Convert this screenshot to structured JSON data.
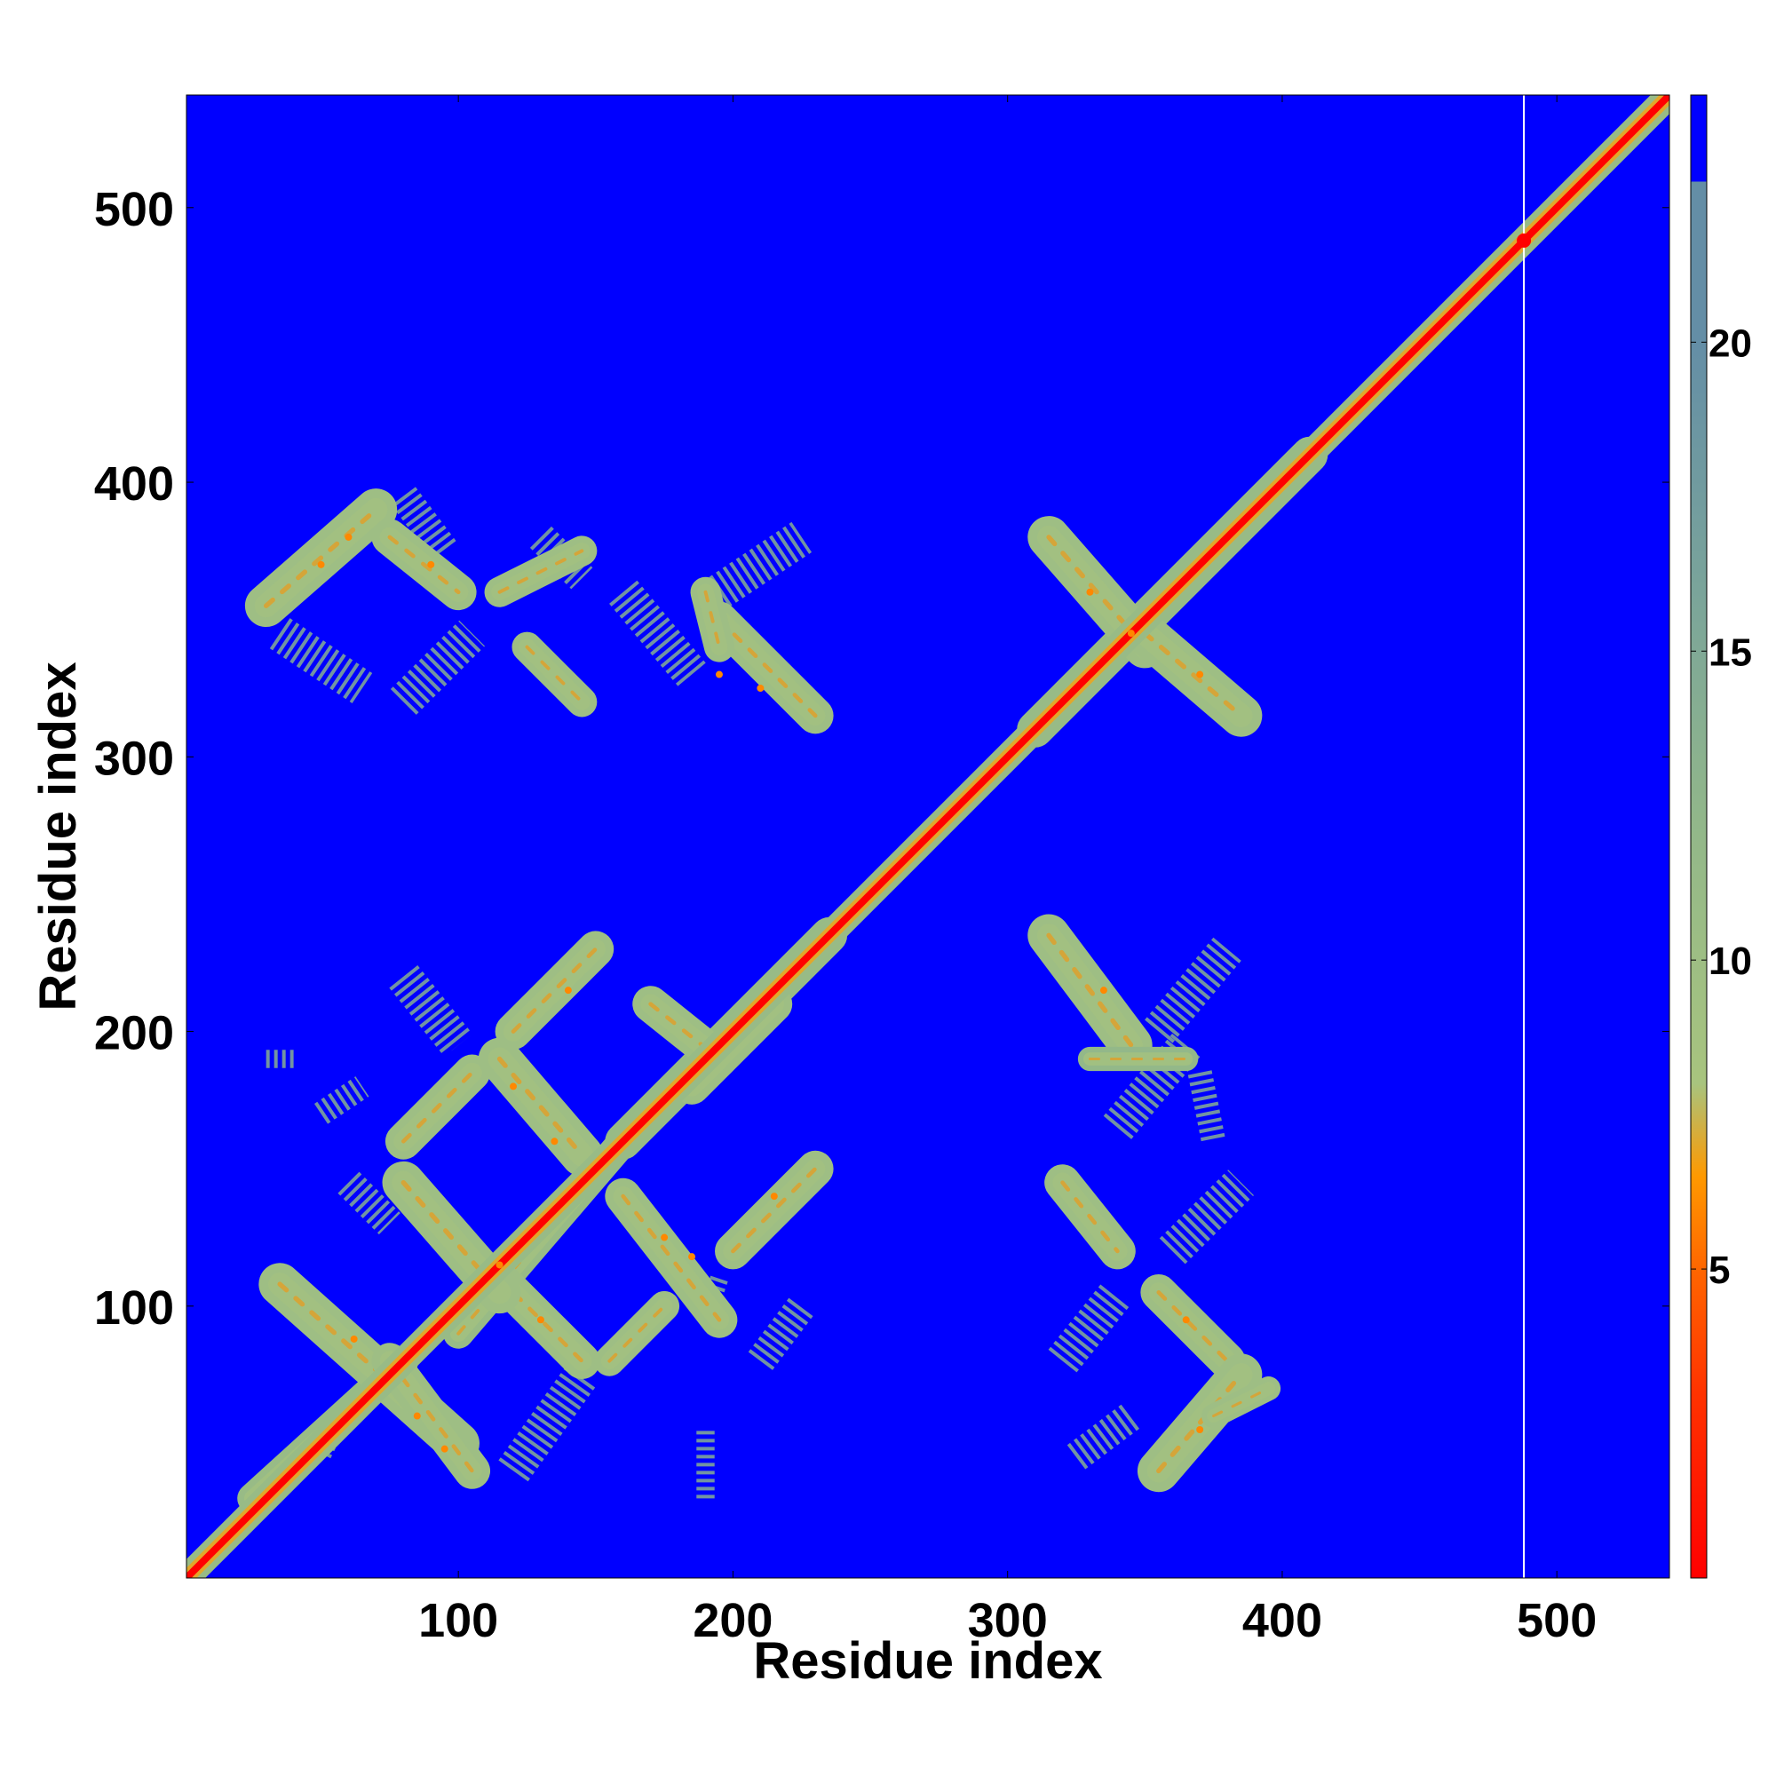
{
  "chart_data": {
    "type": "heatmap",
    "title": "",
    "xlabel": "Residue index",
    "ylabel": "Residue index",
    "xlim": [
      1,
      541
    ],
    "ylim": [
      1,
      541
    ],
    "x_ticks": [
      100,
      200,
      300,
      400,
      500
    ],
    "y_ticks": [
      100,
      200,
      300,
      400,
      500
    ],
    "colorbar": {
      "range": [
        0,
        24
      ],
      "ticks": [
        5,
        10,
        15,
        20
      ],
      "stops": [
        {
          "value": 0,
          "color": "#ff0000"
        },
        {
          "value": 3,
          "color": "#ff3300"
        },
        {
          "value": 5,
          "color": "#ff6600"
        },
        {
          "value": 6.5,
          "color": "#ff9900"
        },
        {
          "value": 8,
          "color": "#a8c47e"
        },
        {
          "value": 12,
          "color": "#93b889"
        },
        {
          "value": 16,
          "color": "#7aa49a"
        },
        {
          "value": 20,
          "color": "#648ea6"
        },
        {
          "value": 22.6,
          "color": "#648ea6"
        },
        {
          "value": 22.6,
          "color": "#0000ff"
        },
        {
          "value": 24,
          "color": "#0000ff"
        }
      ]
    },
    "background_color": "#0000ff",
    "gap_column_x": 488,
    "diagonal": {
      "from": 1,
      "to": 541
    },
    "contact_bands": [
      {
        "x1": 25,
        "y1": 30,
        "x2": 80,
        "y2": 80,
        "width": 5,
        "value": 11
      },
      {
        "x1": 100,
        "y1": 90,
        "x2": 160,
        "y2": 160,
        "width": 5,
        "value": 11
      },
      {
        "x1": 160,
        "y1": 160,
        "x2": 235,
        "y2": 235,
        "width": 6,
        "value": 11
      },
      {
        "x1": 310,
        "y1": 310,
        "x2": 410,
        "y2": 410,
        "width": 6,
        "value": 11
      },
      {
        "x1": 35,
        "y1": 108,
        "x2": 100,
        "y2": 50,
        "width": 7,
        "value": 10
      },
      {
        "x1": 75,
        "y1": 80,
        "x2": 105,
        "y2": 40,
        "width": 6,
        "value": 10
      },
      {
        "x1": 115,
        "y1": 110,
        "x2": 145,
        "y2": 80,
        "width": 6,
        "value": 10
      },
      {
        "x1": 80,
        "y1": 145,
        "x2": 115,
        "y2": 105,
        "width": 7,
        "value": 10
      },
      {
        "x1": 80,
        "y1": 160,
        "x2": 105,
        "y2": 185,
        "width": 6,
        "value": 10
      },
      {
        "x1": 115,
        "y1": 190,
        "x2": 145,
        "y2": 155,
        "width": 7,
        "value": 10
      },
      {
        "x1": 120,
        "y1": 200,
        "x2": 150,
        "y2": 230,
        "width": 6,
        "value": 10
      },
      {
        "x1": 160,
        "y1": 140,
        "x2": 195,
        "y2": 95,
        "width": 6,
        "value": 10
      },
      {
        "x1": 200,
        "y1": 120,
        "x2": 230,
        "y2": 150,
        "width": 6,
        "value": 10
      },
      {
        "x1": 155,
        "y1": 80,
        "x2": 175,
        "y2": 100,
        "width": 5,
        "value": 10
      },
      {
        "x1": 170,
        "y1": 210,
        "x2": 195,
        "y2": 190,
        "width": 6,
        "value": 10
      },
      {
        "x1": 185,
        "y1": 180,
        "x2": 215,
        "y2": 210,
        "width": 6,
        "value": 10
      },
      {
        "x1": 30,
        "y1": 355,
        "x2": 70,
        "y2": 390,
        "width": 7,
        "value": 10
      },
      {
        "x1": 75,
        "y1": 380,
        "x2": 100,
        "y2": 360,
        "width": 6,
        "value": 10
      },
      {
        "x1": 115,
        "y1": 360,
        "x2": 145,
        "y2": 375,
        "width": 5,
        "value": 10
      },
      {
        "x1": 125,
        "y1": 340,
        "x2": 145,
        "y2": 320,
        "width": 5,
        "value": 10
      },
      {
        "x1": 195,
        "y1": 350,
        "x2": 230,
        "y2": 315,
        "width": 6,
        "value": 10
      },
      {
        "x1": 190,
        "y1": 360,
        "x2": 195,
        "y2": 340,
        "width": 5,
        "value": 10
      },
      {
        "x1": 315,
        "y1": 380,
        "x2": 350,
        "y2": 340,
        "width": 7,
        "value": 10
      },
      {
        "x1": 350,
        "y1": 345,
        "x2": 385,
        "y2": 315,
        "width": 7,
        "value": 10
      },
      {
        "x1": 315,
        "y1": 235,
        "x2": 345,
        "y2": 195,
        "width": 7,
        "value": 10
      },
      {
        "x1": 320,
        "y1": 145,
        "x2": 340,
        "y2": 120,
        "width": 6,
        "value": 10
      },
      {
        "x1": 355,
        "y1": 105,
        "x2": 380,
        "y2": 80,
        "width": 6,
        "value": 10
      },
      {
        "x1": 355,
        "y1": 40,
        "x2": 385,
        "y2": 75,
        "width": 7,
        "value": 10
      },
      {
        "x1": 330,
        "y1": 190,
        "x2": 365,
        "y2": 190,
        "width": 4,
        "value": 12
      },
      {
        "x1": 375,
        "y1": 60,
        "x2": 395,
        "y2": 70,
        "width": 4,
        "value": 10
      }
    ],
    "sparse_patches": [
      {
        "x1": 35,
        "y1": 345,
        "x2": 65,
        "y2": 325,
        "width": 6
      },
      {
        "x1": 80,
        "y1": 320,
        "x2": 105,
        "y2": 345,
        "width": 6
      },
      {
        "x1": 80,
        "y1": 395,
        "x2": 95,
        "y2": 375,
        "width": 5
      },
      {
        "x1": 130,
        "y1": 380,
        "x2": 145,
        "y2": 365,
        "width": 5
      },
      {
        "x1": 160,
        "y1": 360,
        "x2": 185,
        "y2": 330,
        "width": 6
      },
      {
        "x1": 195,
        "y1": 360,
        "x2": 225,
        "y2": 380,
        "width": 6
      },
      {
        "x1": 60,
        "y1": 145,
        "x2": 75,
        "y2": 130,
        "width": 5
      },
      {
        "x1": 55,
        "y1": 55,
        "x2": 50,
        "y2": 45,
        "width": 3
      },
      {
        "x1": 80,
        "y1": 220,
        "x2": 100,
        "y2": 195,
        "width": 6
      },
      {
        "x1": 120,
        "y1": 40,
        "x2": 145,
        "y2": 75,
        "width": 6
      },
      {
        "x1": 210,
        "y1": 80,
        "x2": 225,
        "y2": 100,
        "width": 5
      },
      {
        "x1": 190,
        "y1": 30,
        "x2": 190,
        "y2": 55,
        "width": 3
      },
      {
        "x1": 190,
        "y1": 95,
        "x2": 195,
        "y2": 110,
        "width": 3
      },
      {
        "x1": 320,
        "y1": 80,
        "x2": 340,
        "y2": 105,
        "width": 6
      },
      {
        "x1": 325,
        "y1": 45,
        "x2": 345,
        "y2": 60,
        "width": 5
      },
      {
        "x1": 340,
        "y1": 165,
        "x2": 365,
        "y2": 195,
        "width": 6
      },
      {
        "x1": 355,
        "y1": 200,
        "x2": 380,
        "y2": 230,
        "width": 6
      },
      {
        "x1": 360,
        "y1": 120,
        "x2": 385,
        "y2": 145,
        "width": 6
      },
      {
        "x1": 370,
        "y1": 185,
        "x2": 375,
        "y2": 160,
        "width": 4
      },
      {
        "x1": 30,
        "y1": 190,
        "x2": 40,
        "y2": 190,
        "width": 3
      },
      {
        "x1": 50,
        "y1": 170,
        "x2": 65,
        "y2": 180,
        "width": 4
      }
    ],
    "hotspots": [
      [
        62,
        88
      ],
      [
        85,
        60
      ],
      [
        95,
        48
      ],
      [
        130,
        95
      ],
      [
        120,
        180
      ],
      [
        135,
        160
      ],
      [
        140,
        215
      ],
      [
        175,
        125
      ],
      [
        185,
        118
      ],
      [
        215,
        140
      ],
      [
        195,
        330
      ],
      [
        210,
        325
      ],
      [
        60,
        380
      ],
      [
        50,
        370
      ],
      [
        90,
        370
      ],
      [
        330,
        360
      ],
      [
        370,
        330
      ],
      [
        335,
        215
      ],
      [
        365,
        95
      ],
      [
        370,
        55
      ],
      [
        115,
        115
      ],
      [
        345,
        345
      ]
    ]
  }
}
